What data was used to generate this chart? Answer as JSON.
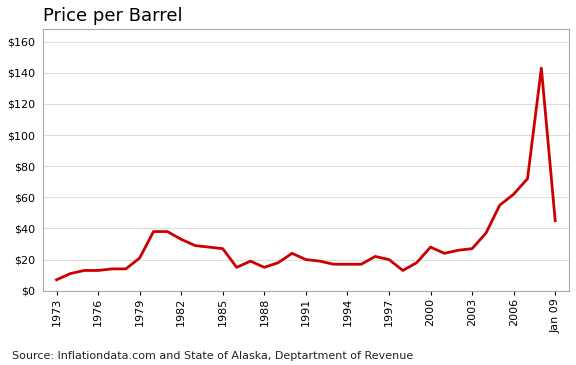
{
  "title": "Price per Barrel",
  "source_text": "Source: Inflationdata.com and State of Alaska, Deptartment of Revenue",
  "line_color": "#cc0000",
  "background_color": "#ffffff",
  "plot_bg_color": "#ffffff",
  "ylim": [
    0,
    168
  ],
  "yticks": [
    0,
    20,
    40,
    60,
    80,
    100,
    120,
    140,
    160
  ],
  "xtick_labels": [
    "1973",
    "1976",
    "1979",
    "1982",
    "1985",
    "1988",
    "1991",
    "1994",
    "1997",
    "2000",
    "2003",
    "2006",
    "Jan 09"
  ],
  "xtick_positions": [
    1973,
    1976,
    1979,
    1982,
    1985,
    1988,
    1991,
    1994,
    1997,
    2000,
    2003,
    2006,
    2009
  ],
  "years": [
    1973,
    1974,
    1975,
    1976,
    1977,
    1978,
    1979,
    1980,
    1981,
    1982,
    1983,
    1984,
    1985,
    1986,
    1987,
    1988,
    1989,
    1990,
    1991,
    1992,
    1993,
    1994,
    1995,
    1996,
    1997,
    1998,
    1999,
    2000,
    2001,
    2002,
    2003,
    2004,
    2005,
    2006,
    2007,
    2008,
    2009
  ],
  "prices": [
    7,
    11,
    13,
    13,
    14,
    14,
    21,
    38,
    38,
    33,
    29,
    28,
    27,
    15,
    19,
    15,
    18,
    24,
    20,
    19,
    17,
    17,
    17,
    22,
    20,
    13,
    18,
    28,
    24,
    26,
    27,
    37,
    55,
    62,
    72,
    143,
    45
  ],
  "spine_color": "#aaaaaa",
  "grid_color": "#dddddd",
  "title_fontsize": 13,
  "tick_fontsize": 8,
  "source_fontsize": 8
}
